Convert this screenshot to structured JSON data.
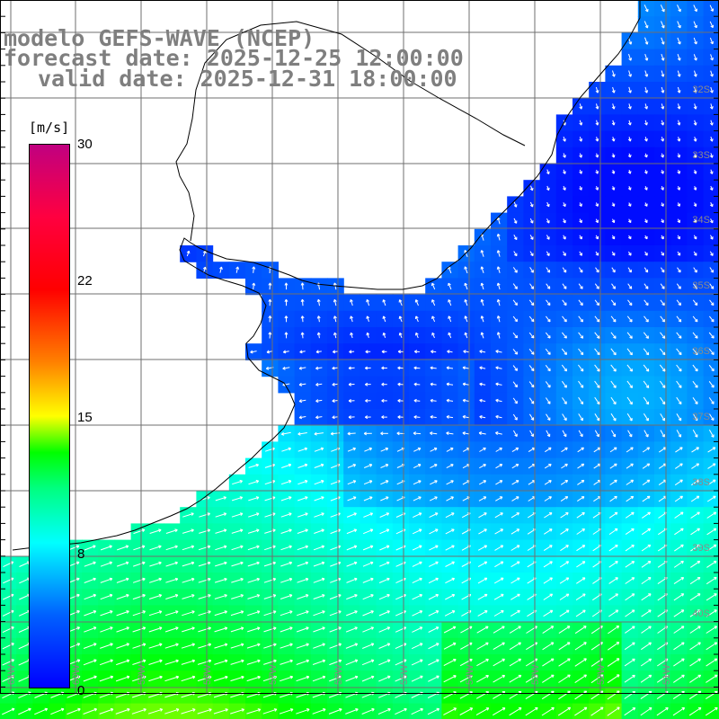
{
  "title": {
    "line1": "modelo GEFS-WAVE (NCEP)",
    "line2": "forecast date: 2025-12-25 12:00:00",
    "line3": "valid date: 2025-12-31 18:00:00"
  },
  "colorbar": {
    "unit": "[m/s]",
    "ticks": [
      "30",
      "22",
      "15",
      "8",
      "0"
    ],
    "tick_values": [
      30,
      22,
      15,
      8,
      0
    ],
    "min": 0,
    "max": 30,
    "color_stops": [
      {
        "value": 0,
        "color": "#0000ff"
      },
      {
        "value": 4,
        "color": "#0060ff"
      },
      {
        "value": 8,
        "color": "#00ffff"
      },
      {
        "value": 11,
        "color": "#00ff80"
      },
      {
        "value": 13,
        "color": "#00ff00"
      },
      {
        "value": 15,
        "color": "#ffff00"
      },
      {
        "value": 18,
        "color": "#ff8000"
      },
      {
        "value": 22,
        "color": "#ff0000"
      },
      {
        "value": 26,
        "color": "#ff0040"
      },
      {
        "value": 30,
        "color": "#c00080"
      }
    ]
  },
  "map": {
    "land_color": "#ffffff",
    "grid_color": "#6f6f6f",
    "coast_color": "#000000",
    "arrow_color": "#ffffff",
    "lat_labels": [
      "32S",
      "33S",
      "34S",
      "35S",
      "36S",
      "37S",
      "38S",
      "39S",
      "40S"
    ],
    "lon_labels": [
      "61W",
      "60W",
      "59W",
      "58W",
      "57W",
      "56W",
      "55W",
      "54W",
      "53W",
      "52W",
      "51W"
    ],
    "wind_field_description": "strong southerly winds south, weaker northerly-easterly winds north"
  }
}
